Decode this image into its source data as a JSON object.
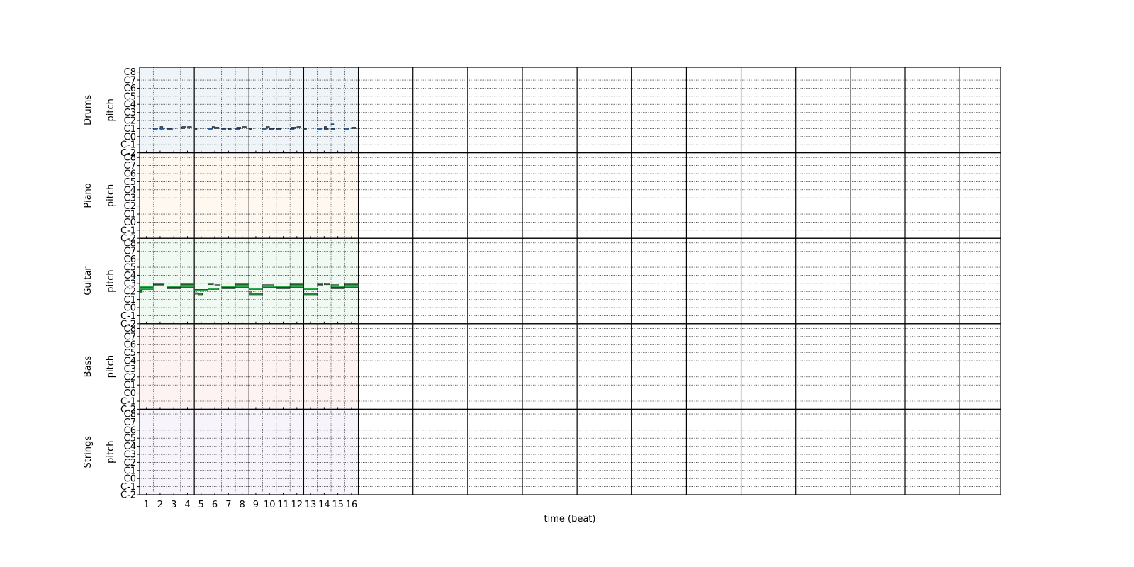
{
  "chart_data": {
    "type": "pianoroll",
    "xlabel": "time (beat)",
    "ylabel": "pitch",
    "beats_shown": 16,
    "xlim_beats": [
      0,
      63
    ],
    "x_tick_labels": [
      "1",
      "2",
      "3",
      "4",
      "5",
      "6",
      "7",
      "8",
      "9",
      "10",
      "11",
      "12",
      "13",
      "14",
      "15",
      "16"
    ],
    "y_tick_labels": [
      "C-2",
      "C-1",
      "C0",
      "C1",
      "C2",
      "C3",
      "C4",
      "C5",
      "C6",
      "C7",
      "C8"
    ],
    "ylim_midi": [
      0,
      127
    ],
    "grid": true,
    "tracks": [
      {
        "name": "Drums",
        "color": "#1f5fa8",
        "notes": [
          [
            1,
            36,
            0.3
          ],
          [
            1.5,
            36,
            0.3
          ],
          [
            1.5,
            38,
            0.2
          ],
          [
            2,
            35,
            0.4
          ],
          [
            3,
            37,
            0.3
          ],
          [
            3.1,
            38,
            0.3
          ],
          [
            3.5,
            38,
            0.3
          ],
          [
            4,
            35,
            0.2
          ],
          [
            5,
            36,
            0.3
          ],
          [
            5.3,
            38,
            0.2
          ],
          [
            5.5,
            37,
            0.3
          ],
          [
            6,
            35,
            0.3
          ],
          [
            6.5,
            35,
            0.2
          ],
          [
            7,
            36,
            0.3
          ],
          [
            7.1,
            37,
            0.3
          ],
          [
            7.5,
            38,
            0.3
          ],
          [
            8,
            35,
            0.2
          ],
          [
            9,
            36,
            0.3
          ],
          [
            9.3,
            38,
            0.2
          ],
          [
            9.5,
            35,
            0.3
          ],
          [
            10,
            35,
            0.3
          ],
          [
            11,
            36,
            0.3
          ],
          [
            11.1,
            37,
            0.3
          ],
          [
            11.5,
            38,
            0.3
          ],
          [
            12,
            35,
            0.2
          ],
          [
            13,
            36,
            0.3
          ],
          [
            13.5,
            38,
            0.2
          ],
          [
            13.5,
            35,
            0.3
          ],
          [
            14,
            35,
            0.3
          ],
          [
            14,
            42,
            0.2
          ],
          [
            15,
            36,
            0.3
          ],
          [
            15.5,
            37,
            0.3
          ]
        ]
      },
      {
        "name": "Piano",
        "color": "#f5a03c",
        "notes": []
      },
      {
        "name": "Guitar",
        "color": "#2ca84a",
        "notes": [
          [
            0,
            52,
            1.0
          ],
          [
            0,
            55,
            1.0
          ],
          [
            0,
            49,
            0.2
          ],
          [
            0,
            47,
            0.2
          ],
          [
            1,
            59,
            0.8
          ],
          [
            1,
            57,
            0.8
          ],
          [
            2,
            55,
            1.0
          ],
          [
            2,
            53,
            1.0
          ],
          [
            3,
            57,
            1.0
          ],
          [
            3,
            59,
            1.0
          ],
          [
            3,
            55,
            1.0
          ],
          [
            4,
            50,
            1.0
          ],
          [
            4,
            45,
            0.3
          ],
          [
            4.3,
            44,
            0.3
          ],
          [
            5,
            59,
            0.4
          ],
          [
            5,
            52,
            0.8
          ],
          [
            5.5,
            57,
            0.4
          ],
          [
            6,
            55,
            1.0
          ],
          [
            6,
            53,
            1.0
          ],
          [
            7,
            57,
            1.0
          ],
          [
            7,
            59,
            1.0
          ],
          [
            7,
            55,
            1.0
          ],
          [
            8,
            52,
            1.0
          ],
          [
            8,
            44,
            1.0
          ],
          [
            8,
            48,
            0.2
          ],
          [
            9,
            55,
            1.0
          ],
          [
            9,
            57,
            0.8
          ],
          [
            10,
            55,
            1.0
          ],
          [
            10,
            53,
            1.0
          ],
          [
            11,
            57,
            1.0
          ],
          [
            11,
            59,
            1.0
          ],
          [
            11,
            55,
            1.0
          ],
          [
            12,
            52,
            1.0
          ],
          [
            12,
            44,
            1.0
          ],
          [
            13,
            59,
            0.4
          ],
          [
            13,
            57,
            0.4
          ],
          [
            13.5,
            59,
            0.4
          ],
          [
            14,
            55,
            1.0
          ],
          [
            14,
            53,
            1.0
          ],
          [
            14,
            57,
            0.6
          ],
          [
            15,
            57,
            1.0
          ],
          [
            15,
            59,
            1.0
          ],
          [
            15,
            55,
            1.0
          ]
        ]
      },
      {
        "name": "Bass",
        "color": "#e05a5a",
        "notes": []
      },
      {
        "name": "Strings",
        "color": "#9a6ad0",
        "notes": []
      }
    ]
  }
}
